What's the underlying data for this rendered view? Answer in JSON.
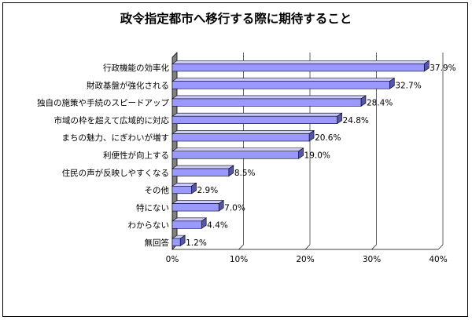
{
  "chart_data": {
    "type": "bar",
    "orientation": "horizontal",
    "title": "政令指定都市へ移行する際に期待すること",
    "categories": [
      "行政機能の効率化",
      "財政基盤が強化される",
      "独自の施策や手続のスピードアップ",
      "市域の枠を超えて広域的に対応",
      "まちの魅力、にぎわいが増す",
      "利便性が向上する",
      "住民の声が反映しやすくなる",
      "その他",
      "特にない",
      "わからない",
      "無回答"
    ],
    "values": [
      37.9,
      32.7,
      28.4,
      24.8,
      20.6,
      19.0,
      8.5,
      2.9,
      7.0,
      4.4,
      1.2
    ],
    "value_labels": [
      "37.9%",
      "32.7%",
      "28.4%",
      "24.8%",
      "20.6%",
      "19.0%",
      "8.5%",
      "2.9%",
      "7.0%",
      "4.4%",
      "1.2%"
    ],
    "xticks": [
      "0%",
      "10%",
      "20%",
      "30%",
      "40%"
    ],
    "xlim": [
      0,
      40
    ],
    "grid": true,
    "xlabel": "",
    "ylabel": "",
    "bar_color": "#9999ff",
    "bar_top_color": "#ccccff",
    "bar_side_color": "#5555aa",
    "wall_color": "#808080"
  }
}
